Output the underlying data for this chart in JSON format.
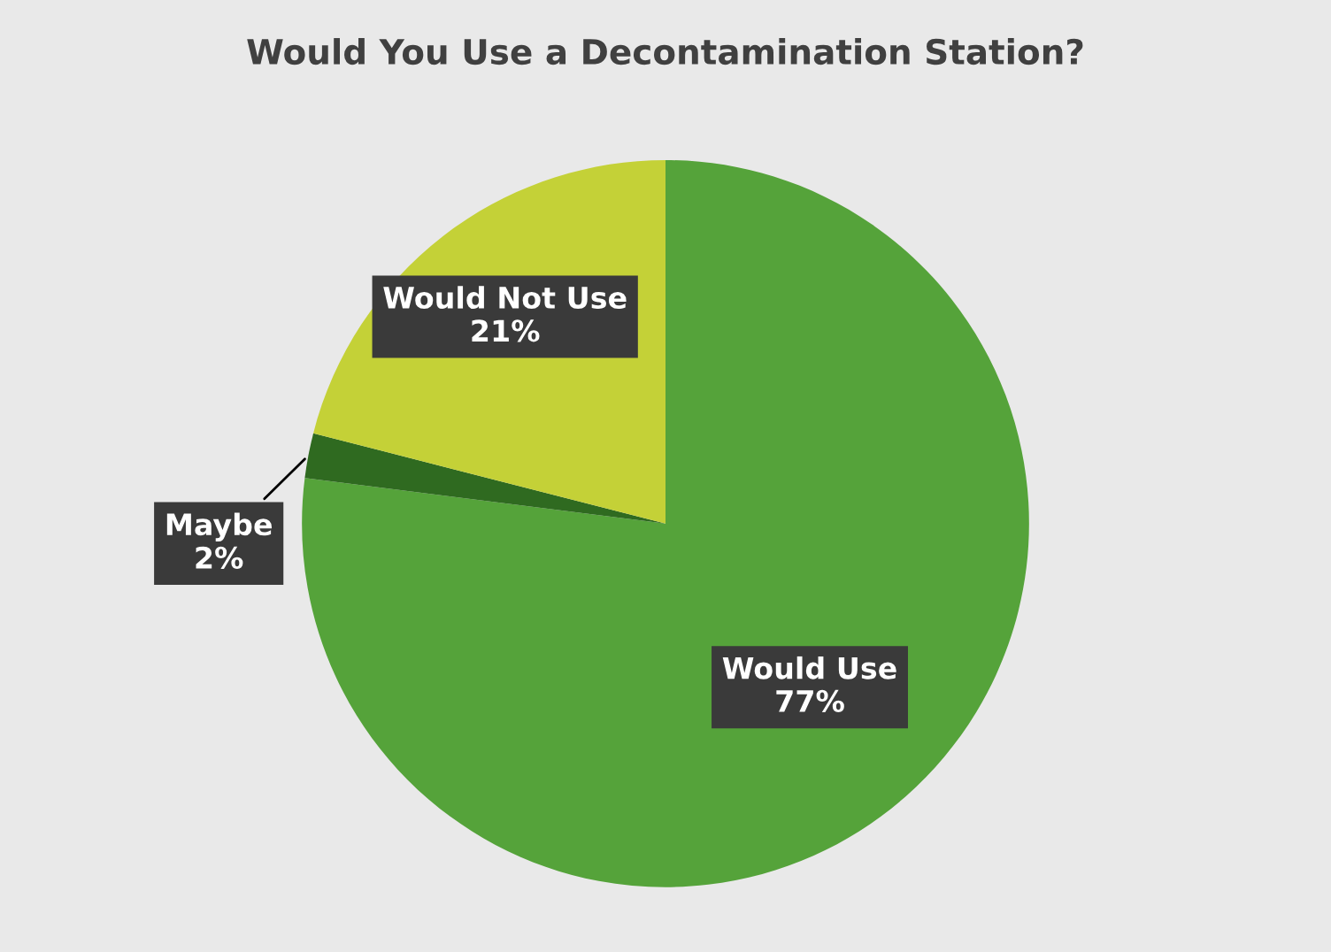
{
  "chart_data": {
    "type": "pie",
    "title": "Would You Use a Decontamination Station?",
    "categories": [
      "Would Use",
      "Maybe",
      "Would Not Use"
    ],
    "values": [
      77,
      2,
      21
    ],
    "value_labels": [
      "77%",
      "2%",
      "21%"
    ],
    "colors": [
      "#55a33a",
      "#2f6a20",
      "#c4d137"
    ],
    "legend": false
  }
}
